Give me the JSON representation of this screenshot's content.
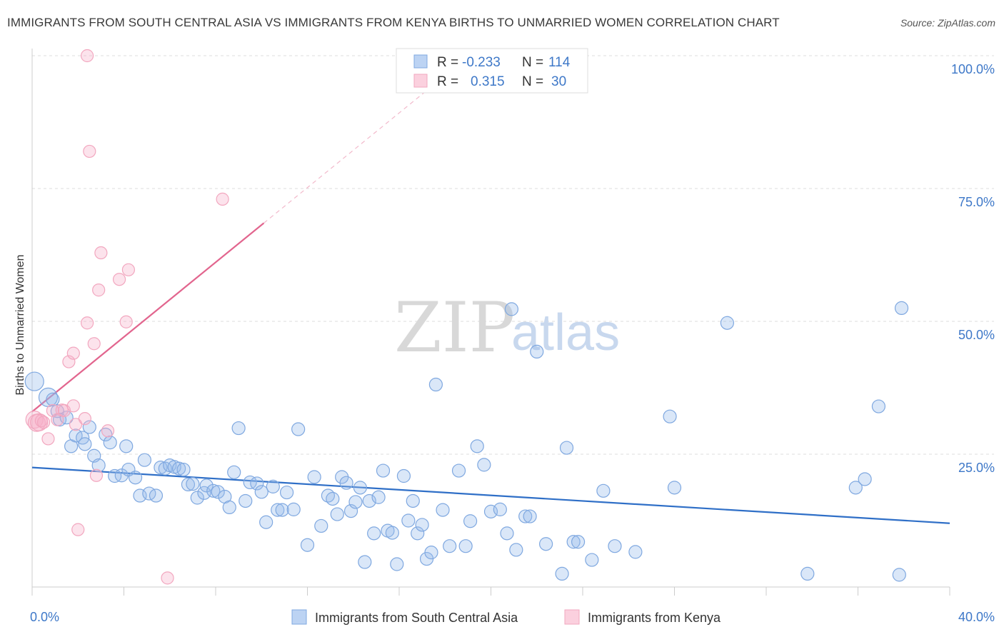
{
  "title": "IMMIGRANTS FROM SOUTH CENTRAL ASIA VS IMMIGRANTS FROM KENYA BIRTHS TO UNMARRIED WOMEN CORRELATION CHART",
  "source": "Source: ZipAtlas.com",
  "watermark": {
    "zip": "ZIP",
    "atlas": "atlas"
  },
  "colors": {
    "blue": "#7fa8e0",
    "blue_line": "#2f6fc7",
    "pink": "#f2a7bf",
    "pink_line": "#e2658e",
    "tick": "#3e78c8"
  },
  "legend_top": {
    "rows": [
      {
        "r_label": "R =",
        "r_value": "-0.233",
        "n_label": "N =",
        "n_value": "114"
      },
      {
        "r_label": "R =",
        "r_value": "0.315",
        "n_label": "N =",
        "n_value": "30"
      }
    ]
  },
  "chart_data": {
    "type": "scatter",
    "title": "IMMIGRANTS FROM SOUTH CENTRAL ASIA VS IMMIGRANTS FROM KENYA BIRTHS TO UNMARRIED WOMEN CORRELATION CHART",
    "xlabel": "",
    "ylabel": "Births to Unmarried Women",
    "xlim": [
      0,
      40
    ],
    "ylim": [
      0,
      100
    ],
    "x_tick_labels": [
      "0.0%",
      "40.0%"
    ],
    "y_tick_labels": [
      "100.0%",
      "75.0%",
      "50.0%",
      "25.0%"
    ],
    "y_ticks": [
      100,
      75,
      50,
      25
    ],
    "x_ticks": [
      0,
      4,
      8,
      12,
      16,
      20,
      24,
      28,
      32,
      36,
      40
    ],
    "grid": true,
    "series": [
      {
        "name": "Immigrants from South Central Asia",
        "color": "#7fa8e0",
        "trend": {
          "x": [
            0,
            40
          ],
          "y": [
            22.5,
            12.0
          ]
        },
        "points": [
          [
            0.1,
            38.7
          ],
          [
            0.7,
            35.7
          ],
          [
            0.9,
            35.3
          ],
          [
            1.1,
            33.1
          ],
          [
            1.2,
            31.5
          ],
          [
            1.5,
            31.9
          ],
          [
            1.7,
            26.5
          ],
          [
            1.9,
            28.5
          ],
          [
            2.2,
            28.1
          ],
          [
            2.3,
            26.9
          ],
          [
            2.5,
            30.1
          ],
          [
            2.7,
            24.7
          ],
          [
            2.9,
            22.9
          ],
          [
            3.2,
            28.7
          ],
          [
            3.4,
            27.2
          ],
          [
            3.6,
            20.9
          ],
          [
            3.9,
            21.0
          ],
          [
            4.1,
            26.5
          ],
          [
            4.2,
            22.1
          ],
          [
            4.5,
            20.6
          ],
          [
            4.7,
            17.2
          ],
          [
            4.9,
            23.9
          ],
          [
            5.1,
            17.6
          ],
          [
            5.4,
            17.2
          ],
          [
            5.6,
            22.5
          ],
          [
            5.8,
            22.3
          ],
          [
            6.0,
            22.9
          ],
          [
            6.2,
            22.6
          ],
          [
            6.4,
            22.3
          ],
          [
            6.6,
            22.1
          ],
          [
            6.8,
            19.3
          ],
          [
            7.0,
            19.4
          ],
          [
            7.2,
            16.8
          ],
          [
            7.5,
            17.7
          ],
          [
            7.6,
            19.1
          ],
          [
            7.9,
            18.1
          ],
          [
            8.1,
            17.9
          ],
          [
            8.4,
            17.0
          ],
          [
            8.6,
            15.0
          ],
          [
            8.8,
            21.6
          ],
          [
            9.0,
            29.9
          ],
          [
            9.3,
            16.2
          ],
          [
            9.5,
            19.7
          ],
          [
            9.8,
            19.5
          ],
          [
            10.0,
            17.9
          ],
          [
            10.2,
            12.2
          ],
          [
            10.5,
            18.9
          ],
          [
            10.7,
            14.5
          ],
          [
            10.9,
            14.5
          ],
          [
            11.1,
            17.8
          ],
          [
            11.4,
            14.6
          ],
          [
            11.6,
            29.7
          ],
          [
            12.0,
            7.9
          ],
          [
            12.3,
            20.7
          ],
          [
            12.6,
            11.5
          ],
          [
            12.9,
            17.2
          ],
          [
            13.1,
            16.6
          ],
          [
            13.3,
            13.7
          ],
          [
            13.5,
            20.7
          ],
          [
            13.7,
            19.6
          ],
          [
            13.9,
            14.3
          ],
          [
            14.1,
            16.0
          ],
          [
            14.3,
            18.7
          ],
          [
            14.5,
            4.7
          ],
          [
            14.7,
            16.2
          ],
          [
            14.9,
            10.1
          ],
          [
            15.1,
            16.9
          ],
          [
            15.3,
            21.9
          ],
          [
            15.5,
            10.6
          ],
          [
            15.7,
            10.2
          ],
          [
            15.9,
            4.3
          ],
          [
            16.2,
            20.9
          ],
          [
            16.4,
            12.5
          ],
          [
            16.6,
            16.2
          ],
          [
            16.8,
            10.1
          ],
          [
            17.0,
            11.7
          ],
          [
            17.2,
            5.3
          ],
          [
            17.4,
            6.5
          ],
          [
            17.6,
            38.1
          ],
          [
            17.9,
            14.5
          ],
          [
            18.2,
            7.7
          ],
          [
            18.6,
            21.9
          ],
          [
            18.9,
            7.7
          ],
          [
            19.1,
            12.4
          ],
          [
            19.4,
            26.5
          ],
          [
            19.7,
            23.0
          ],
          [
            20.0,
            14.2
          ],
          [
            20.4,
            14.6
          ],
          [
            20.7,
            10.1
          ],
          [
            20.9,
            52.3
          ],
          [
            21.1,
            7.0
          ],
          [
            21.5,
            13.3
          ],
          [
            21.7,
            13.3
          ],
          [
            22.0,
            44.3
          ],
          [
            22.4,
            8.1
          ],
          [
            23.1,
            2.5
          ],
          [
            23.3,
            26.2
          ],
          [
            23.6,
            8.5
          ],
          [
            23.8,
            8.5
          ],
          [
            24.4,
            5.1
          ],
          [
            24.9,
            18.1
          ],
          [
            25.4,
            7.7
          ],
          [
            26.3,
            6.6
          ],
          [
            27.8,
            32.1
          ],
          [
            28.0,
            18.7
          ],
          [
            30.3,
            49.7
          ],
          [
            33.8,
            2.5
          ],
          [
            35.9,
            18.7
          ],
          [
            36.3,
            20.3
          ],
          [
            36.9,
            34.0
          ],
          [
            37.8,
            2.3
          ],
          [
            37.9,
            52.5
          ]
        ]
      },
      {
        "name": "Immigrants from Kenya",
        "color": "#f2a7bf",
        "trend": {
          "x": [
            0,
            10.1
          ],
          "y": [
            33.0,
            68.5
          ]
        },
        "trend_dashed": {
          "x": [
            10.1,
            17.5
          ],
          "y": [
            68.5,
            94.5
          ]
        },
        "points": [
          [
            0.1,
            31.5
          ],
          [
            0.2,
            30.9
          ],
          [
            0.3,
            31.0
          ],
          [
            0.4,
            31.3
          ],
          [
            0.5,
            31.0
          ],
          [
            0.7,
            27.9
          ],
          [
            0.9,
            33.2
          ],
          [
            1.1,
            31.5
          ],
          [
            1.3,
            33.3
          ],
          [
            1.4,
            33.2
          ],
          [
            1.6,
            42.4
          ],
          [
            1.8,
            44.0
          ],
          [
            1.8,
            34.1
          ],
          [
            1.9,
            30.6
          ],
          [
            2.0,
            10.8
          ],
          [
            2.3,
            31.7
          ],
          [
            2.4,
            49.7
          ],
          [
            2.5,
            82.0
          ],
          [
            2.7,
            45.8
          ],
          [
            2.8,
            21.0
          ],
          [
            2.9,
            55.9
          ],
          [
            3.0,
            62.9
          ],
          [
            3.3,
            29.4
          ],
          [
            3.8,
            57.9
          ],
          [
            4.1,
            49.9
          ],
          [
            4.2,
            59.7
          ],
          [
            5.9,
            1.7
          ],
          [
            8.3,
            73.0
          ],
          [
            2.4,
            100.0
          ]
        ]
      }
    ]
  },
  "bottom_legend": [
    {
      "label": "Immigrants from South Central Asia"
    },
    {
      "label": "Immigrants from Kenya"
    }
  ]
}
